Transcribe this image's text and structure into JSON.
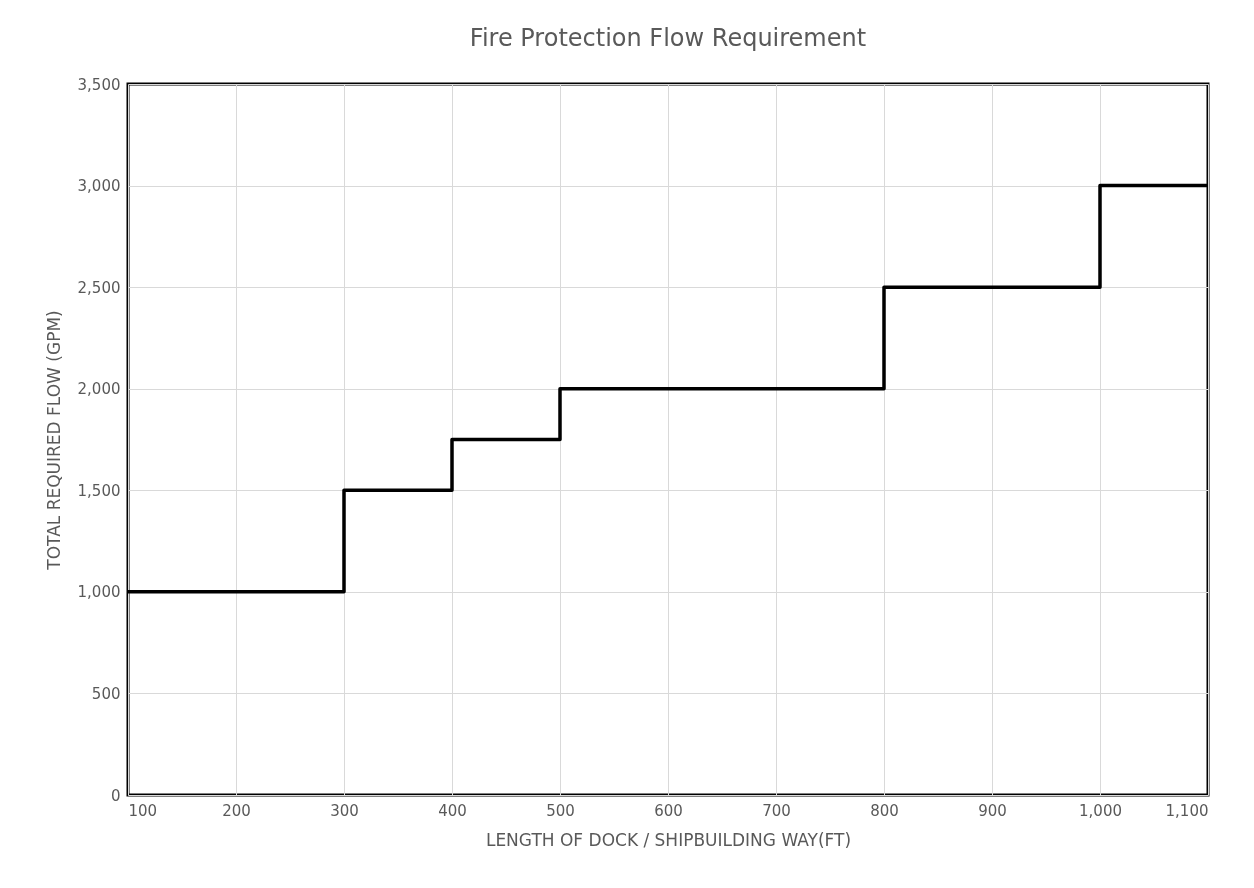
{
  "chart_data": {
    "type": "step",
    "title": "Fire Protection Flow Requirement",
    "xlabel": "LENGTH OF DOCK / SHIPBUILDING WAY(FT)",
    "ylabel": "TOTAL REQUIRED FLOW (GPM)",
    "x": [
      100,
      300,
      400,
      500,
      800,
      1000,
      1100
    ],
    "series": [
      {
        "color": "#000000",
        "values": [
          1000,
          1500,
          1750,
          2000,
          2500,
          3000,
          3000
        ]
      }
    ],
    "xlim": [
      100,
      1100
    ],
    "xticks": [
      100,
      200,
      300,
      400,
      500,
      600,
      700,
      800,
      900,
      {
        "value": 1000,
        "label": "1,000"
      },
      {
        "value": 1100,
        "label": "1,100"
      }
    ],
    "ylim": [
      0,
      3500
    ],
    "yticks": [
      0,
      500,
      {
        "value": 1000,
        "label": "1,000"
      },
      {
        "value": 1500,
        "label": "1,500"
      },
      {
        "value": 2000,
        "label": "2,000"
      },
      {
        "value": 2500,
        "label": "2,500"
      },
      {
        "value": 3000,
        "label": "3,000"
      },
      {
        "value": 3500,
        "label": "3,500"
      }
    ],
    "grid": true,
    "legend": false,
    "marker": "none",
    "line_style": "solid"
  }
}
